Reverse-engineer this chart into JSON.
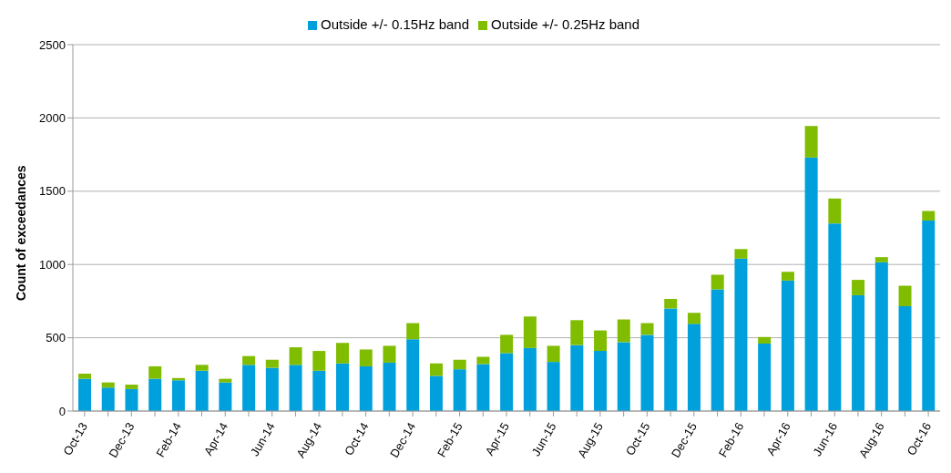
{
  "chart_data": {
    "type": "bar",
    "stacked": true,
    "ylabel": "Count of exceedances",
    "categories": [
      "Oct-13",
      null,
      "Dec-13",
      null,
      "Feb-14",
      null,
      "Apr-14",
      null,
      "Jun-14",
      null,
      "Aug-14",
      null,
      "Oct-14",
      null,
      "Dec-14",
      null,
      "Feb-15",
      null,
      "Apr-15",
      null,
      "Jun-15",
      null,
      "Aug-15",
      null,
      "Oct-15",
      null,
      "Dec-15",
      null,
      "Feb-16",
      null,
      "Apr-16",
      null,
      "Jun-16",
      null,
      "Aug-16",
      null,
      "Oct-16"
    ],
    "series": [
      {
        "name": "Outside +/- 0.15Hz band",
        "color": "#00a0dc",
        "values": [
          220,
          160,
          150,
          220,
          210,
          275,
          195,
          315,
          295,
          315,
          275,
          325,
          305,
          330,
          490,
          240,
          285,
          320,
          395,
          430,
          335,
          450,
          410,
          470,
          520,
          700,
          595,
          830,
          1040,
          460,
          890,
          1730,
          1280,
          790,
          1015,
          715,
          1300
        ]
      },
      {
        "name": "Outside +/- 0.25Hz band",
        "color": "#80bc00",
        "values": [
          35,
          35,
          30,
          85,
          15,
          40,
          25,
          60,
          55,
          120,
          135,
          140,
          115,
          115,
          110,
          85,
          65,
          50,
          125,
          215,
          110,
          170,
          140,
          155,
          80,
          65,
          75,
          100,
          65,
          45,
          60,
          215,
          170,
          105,
          35,
          140,
          65
        ]
      }
    ],
    "ylim": [
      0,
      2500
    ],
    "yticks": [
      0,
      500,
      1000,
      1500,
      2000,
      2500
    ],
    "grid": "y",
    "legend": "top"
  }
}
